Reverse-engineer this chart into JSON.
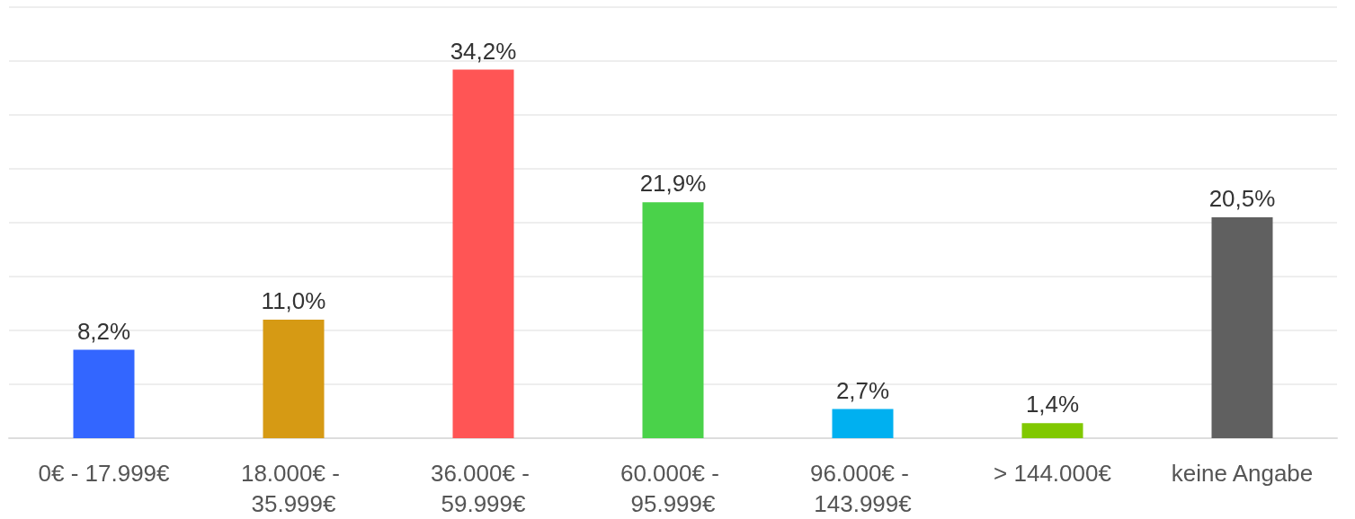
{
  "chart_data": {
    "type": "bar",
    "categories": [
      "0€ - 17.999€",
      "18.000€ - 35.999€",
      "36.000€ - 59.999€",
      "60.000€ - 95.999€",
      "96.000€ - 143.999€",
      "> 144.000€",
      "keine Angabe"
    ],
    "values": [
      8.2,
      11.0,
      34.2,
      21.9,
      2.7,
      1.4,
      20.5
    ],
    "colors": [
      "#3366ff",
      "#d69a14",
      "#ff5555",
      "#4ad24a",
      "#00b0f0",
      "#80c800",
      "#606060"
    ],
    "value_labels": [
      "8,2%",
      "11,0%",
      "34,2%",
      "21,9%",
      "2,7%",
      "1,4%",
      "20,5%"
    ],
    "ylim": [
      0,
      40
    ],
    "yticks": [
      {
        "value": 0,
        "label": null
      },
      {
        "value": 5,
        "label": null
      },
      {
        "value": 10,
        "label": null
      },
      {
        "value": 15,
        "label": null
      },
      {
        "value": 20,
        "label": null
      },
      {
        "value": 25,
        "label": null
      },
      {
        "value": 30,
        "label": null
      },
      {
        "value": 35,
        "label": null
      },
      {
        "value": 40,
        "label": null
      }
    ],
    "tick_labels": "x",
    "grid": "y"
  }
}
